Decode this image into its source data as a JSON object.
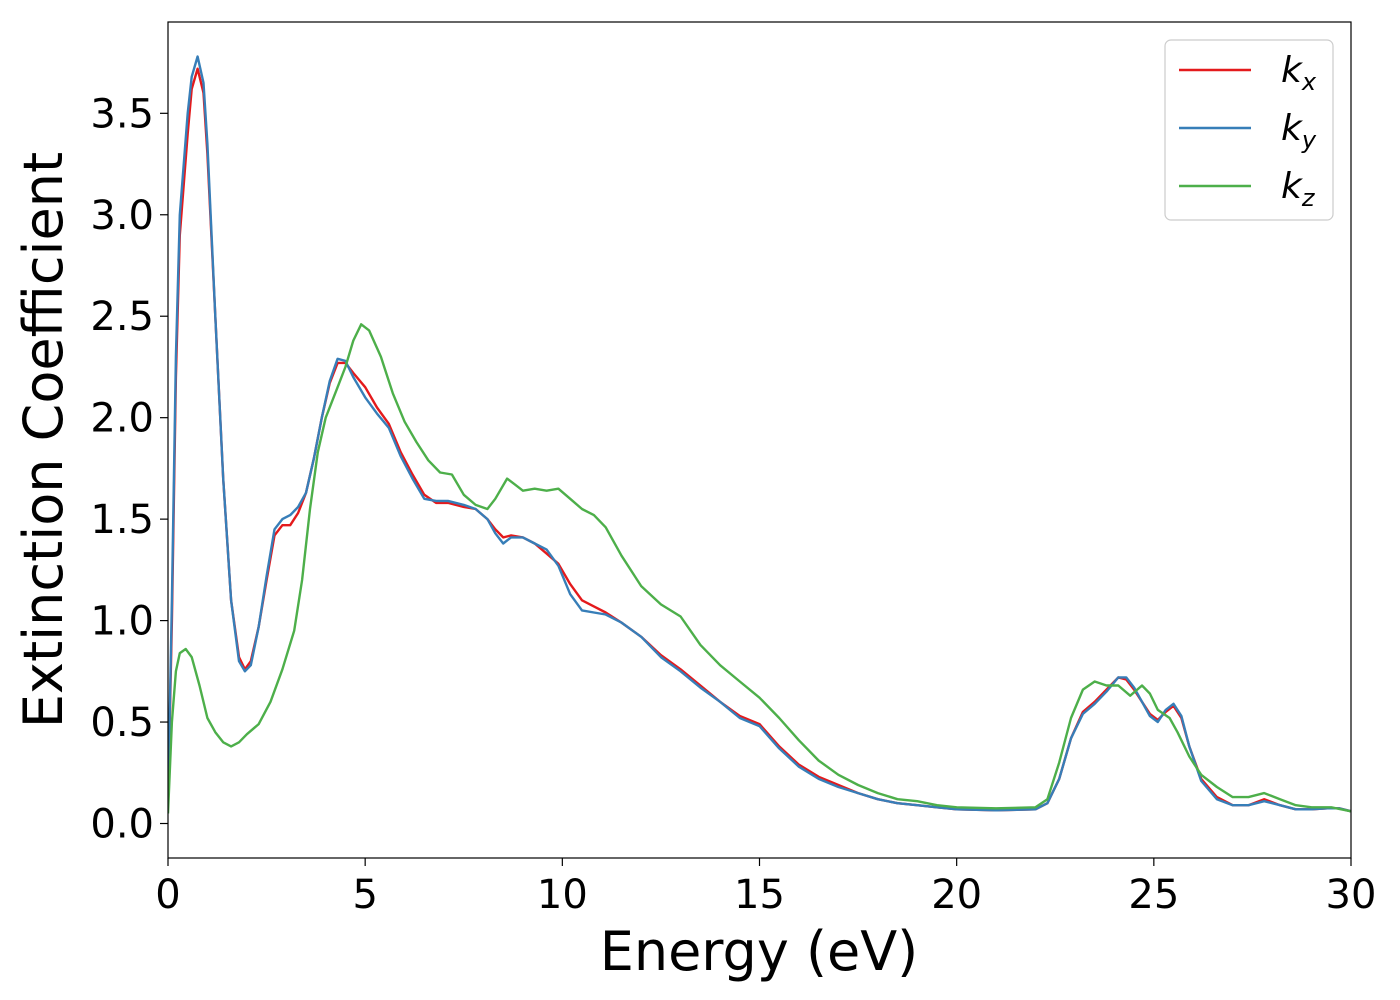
{
  "chart_data": {
    "type": "line",
    "xlabel": "Energy (eV)",
    "ylabel": "Extinction Coefficient",
    "xlim": [
      0,
      30
    ],
    "ylim": [
      -0.17,
      3.95
    ],
    "grid": false,
    "legend_position": "top-right",
    "xticks": [
      "0",
      "5",
      "10",
      "15",
      "20",
      "25",
      "30"
    ],
    "yticks": [
      "0.0",
      "0.5",
      "1.0",
      "1.5",
      "2.0",
      "2.5",
      "3.0",
      "3.5"
    ],
    "series": [
      {
        "name": "k",
        "subscript": "x",
        "color": "#e41a1c",
        "points": [
          [
            0,
            0.1
          ],
          [
            0.1,
            1.0
          ],
          [
            0.2,
            2.2
          ],
          [
            0.3,
            2.9
          ],
          [
            0.5,
            3.4
          ],
          [
            0.6,
            3.62
          ],
          [
            0.75,
            3.72
          ],
          [
            0.9,
            3.6
          ],
          [
            1.0,
            3.3
          ],
          [
            1.2,
            2.5
          ],
          [
            1.4,
            1.7
          ],
          [
            1.6,
            1.1
          ],
          [
            1.8,
            0.82
          ],
          [
            1.95,
            0.76
          ],
          [
            2.1,
            0.8
          ],
          [
            2.3,
            0.97
          ],
          [
            2.5,
            1.2
          ],
          [
            2.7,
            1.42
          ],
          [
            2.9,
            1.47
          ],
          [
            3.1,
            1.47
          ],
          [
            3.3,
            1.53
          ],
          [
            3.5,
            1.63
          ],
          [
            3.7,
            1.8
          ],
          [
            3.9,
            2.0
          ],
          [
            4.1,
            2.17
          ],
          [
            4.3,
            2.27
          ],
          [
            4.5,
            2.27
          ],
          [
            4.7,
            2.22
          ],
          [
            5.0,
            2.15
          ],
          [
            5.3,
            2.05
          ],
          [
            5.6,
            1.97
          ],
          [
            5.9,
            1.83
          ],
          [
            6.2,
            1.72
          ],
          [
            6.5,
            1.62
          ],
          [
            6.8,
            1.58
          ],
          [
            7.1,
            1.58
          ],
          [
            7.5,
            1.56
          ],
          [
            7.8,
            1.55
          ],
          [
            8.1,
            1.5
          ],
          [
            8.3,
            1.45
          ],
          [
            8.5,
            1.41
          ],
          [
            8.7,
            1.42
          ],
          [
            9.0,
            1.41
          ],
          [
            9.3,
            1.38
          ],
          [
            9.6,
            1.33
          ],
          [
            9.9,
            1.28
          ],
          [
            10.2,
            1.18
          ],
          [
            10.5,
            1.1
          ],
          [
            10.8,
            1.07
          ],
          [
            11.1,
            1.04
          ],
          [
            11.5,
            0.99
          ],
          [
            12.0,
            0.92
          ],
          [
            12.5,
            0.83
          ],
          [
            13.0,
            0.76
          ],
          [
            13.5,
            0.68
          ],
          [
            14.0,
            0.6
          ],
          [
            14.5,
            0.53
          ],
          [
            15.0,
            0.49
          ],
          [
            15.5,
            0.38
          ],
          [
            16.0,
            0.29
          ],
          [
            16.5,
            0.23
          ],
          [
            17.0,
            0.19
          ],
          [
            17.5,
            0.15
          ],
          [
            18.0,
            0.12
          ],
          [
            18.5,
            0.1
          ],
          [
            19.0,
            0.09
          ],
          [
            19.5,
            0.08
          ],
          [
            20.0,
            0.07
          ],
          [
            21.0,
            0.065
          ],
          [
            22.0,
            0.07
          ],
          [
            22.3,
            0.1
          ],
          [
            22.6,
            0.22
          ],
          [
            22.9,
            0.42
          ],
          [
            23.2,
            0.55
          ],
          [
            23.5,
            0.6
          ],
          [
            23.8,
            0.66
          ],
          [
            24.1,
            0.72
          ],
          [
            24.3,
            0.71
          ],
          [
            24.5,
            0.66
          ],
          [
            24.7,
            0.6
          ],
          [
            24.9,
            0.54
          ],
          [
            25.1,
            0.51
          ],
          [
            25.3,
            0.55
          ],
          [
            25.5,
            0.58
          ],
          [
            25.7,
            0.52
          ],
          [
            25.9,
            0.38
          ],
          [
            26.2,
            0.22
          ],
          [
            26.6,
            0.13
          ],
          [
            27.0,
            0.09
          ],
          [
            27.4,
            0.09
          ],
          [
            27.8,
            0.12
          ],
          [
            28.2,
            0.09
          ],
          [
            28.6,
            0.07
          ],
          [
            29.0,
            0.07
          ],
          [
            29.4,
            0.075
          ],
          [
            29.7,
            0.075
          ],
          [
            30.0,
            0.06
          ]
        ]
      },
      {
        "name": "k",
        "subscript": "y",
        "color": "#377eb8",
        "points": [
          [
            0,
            0.1
          ],
          [
            0.1,
            1.1
          ],
          [
            0.2,
            2.3
          ],
          [
            0.3,
            3.0
          ],
          [
            0.5,
            3.5
          ],
          [
            0.6,
            3.68
          ],
          [
            0.75,
            3.78
          ],
          [
            0.9,
            3.65
          ],
          [
            1.0,
            3.35
          ],
          [
            1.2,
            2.5
          ],
          [
            1.4,
            1.7
          ],
          [
            1.6,
            1.1
          ],
          [
            1.8,
            0.8
          ],
          [
            1.95,
            0.75
          ],
          [
            2.1,
            0.78
          ],
          [
            2.3,
            0.97
          ],
          [
            2.5,
            1.22
          ],
          [
            2.7,
            1.45
          ],
          [
            2.9,
            1.5
          ],
          [
            3.1,
            1.52
          ],
          [
            3.3,
            1.56
          ],
          [
            3.5,
            1.63
          ],
          [
            3.7,
            1.8
          ],
          [
            3.9,
            2.0
          ],
          [
            4.1,
            2.18
          ],
          [
            4.3,
            2.29
          ],
          [
            4.5,
            2.28
          ],
          [
            4.7,
            2.2
          ],
          [
            5.0,
            2.1
          ],
          [
            5.3,
            2.02
          ],
          [
            5.6,
            1.95
          ],
          [
            5.9,
            1.81
          ],
          [
            6.2,
            1.7
          ],
          [
            6.5,
            1.6
          ],
          [
            6.8,
            1.59
          ],
          [
            7.1,
            1.59
          ],
          [
            7.5,
            1.57
          ],
          [
            7.8,
            1.55
          ],
          [
            8.1,
            1.5
          ],
          [
            8.3,
            1.43
          ],
          [
            8.5,
            1.38
          ],
          [
            8.7,
            1.41
          ],
          [
            9.0,
            1.41
          ],
          [
            9.3,
            1.38
          ],
          [
            9.6,
            1.35
          ],
          [
            9.9,
            1.27
          ],
          [
            10.2,
            1.13
          ],
          [
            10.5,
            1.05
          ],
          [
            10.8,
            1.04
          ],
          [
            11.1,
            1.03
          ],
          [
            11.5,
            0.99
          ],
          [
            12.0,
            0.92
          ],
          [
            12.5,
            0.82
          ],
          [
            13.0,
            0.75
          ],
          [
            13.5,
            0.67
          ],
          [
            14.0,
            0.6
          ],
          [
            14.5,
            0.52
          ],
          [
            15.0,
            0.48
          ],
          [
            15.5,
            0.37
          ],
          [
            16.0,
            0.28
          ],
          [
            16.5,
            0.22
          ],
          [
            17.0,
            0.18
          ],
          [
            17.5,
            0.15
          ],
          [
            18.0,
            0.12
          ],
          [
            18.5,
            0.1
          ],
          [
            19.0,
            0.09
          ],
          [
            19.5,
            0.08
          ],
          [
            20.0,
            0.07
          ],
          [
            21.0,
            0.065
          ],
          [
            22.0,
            0.07
          ],
          [
            22.3,
            0.1
          ],
          [
            22.6,
            0.22
          ],
          [
            22.9,
            0.42
          ],
          [
            23.2,
            0.54
          ],
          [
            23.5,
            0.59
          ],
          [
            23.8,
            0.65
          ],
          [
            24.1,
            0.72
          ],
          [
            24.3,
            0.72
          ],
          [
            24.5,
            0.67
          ],
          [
            24.7,
            0.6
          ],
          [
            24.9,
            0.53
          ],
          [
            25.1,
            0.5
          ],
          [
            25.3,
            0.56
          ],
          [
            25.5,
            0.59
          ],
          [
            25.7,
            0.53
          ],
          [
            25.9,
            0.38
          ],
          [
            26.2,
            0.21
          ],
          [
            26.6,
            0.12
          ],
          [
            27.0,
            0.09
          ],
          [
            27.4,
            0.09
          ],
          [
            27.8,
            0.11
          ],
          [
            28.2,
            0.09
          ],
          [
            28.6,
            0.07
          ],
          [
            29.0,
            0.07
          ],
          [
            29.4,
            0.075
          ],
          [
            29.7,
            0.075
          ],
          [
            30.0,
            0.06
          ]
        ]
      },
      {
        "name": "k",
        "subscript": "z",
        "color": "#4daf4a",
        "points": [
          [
            0,
            0.05
          ],
          [
            0.1,
            0.5
          ],
          [
            0.2,
            0.75
          ],
          [
            0.3,
            0.84
          ],
          [
            0.45,
            0.86
          ],
          [
            0.6,
            0.82
          ],
          [
            0.8,
            0.68
          ],
          [
            1.0,
            0.52
          ],
          [
            1.2,
            0.45
          ],
          [
            1.4,
            0.4
          ],
          [
            1.6,
            0.38
          ],
          [
            1.8,
            0.4
          ],
          [
            2.0,
            0.44
          ],
          [
            2.3,
            0.49
          ],
          [
            2.6,
            0.6
          ],
          [
            2.9,
            0.76
          ],
          [
            3.2,
            0.95
          ],
          [
            3.4,
            1.2
          ],
          [
            3.6,
            1.55
          ],
          [
            3.8,
            1.83
          ],
          [
            4.0,
            2.0
          ],
          [
            4.3,
            2.15
          ],
          [
            4.5,
            2.25
          ],
          [
            4.7,
            2.38
          ],
          [
            4.9,
            2.46
          ],
          [
            5.1,
            2.43
          ],
          [
            5.4,
            2.3
          ],
          [
            5.7,
            2.12
          ],
          [
            6.0,
            1.98
          ],
          [
            6.3,
            1.88
          ],
          [
            6.6,
            1.79
          ],
          [
            6.9,
            1.73
          ],
          [
            7.2,
            1.72
          ],
          [
            7.5,
            1.62
          ],
          [
            7.8,
            1.57
          ],
          [
            8.1,
            1.55
          ],
          [
            8.3,
            1.6
          ],
          [
            8.6,
            1.7
          ],
          [
            8.8,
            1.67
          ],
          [
            9.0,
            1.64
          ],
          [
            9.3,
            1.65
          ],
          [
            9.6,
            1.64
          ],
          [
            9.9,
            1.65
          ],
          [
            10.2,
            1.6
          ],
          [
            10.5,
            1.55
          ],
          [
            10.8,
            1.52
          ],
          [
            11.1,
            1.46
          ],
          [
            11.5,
            1.32
          ],
          [
            12.0,
            1.17
          ],
          [
            12.5,
            1.08
          ],
          [
            13.0,
            1.02
          ],
          [
            13.5,
            0.88
          ],
          [
            14.0,
            0.78
          ],
          [
            14.5,
            0.7
          ],
          [
            15.0,
            0.62
          ],
          [
            15.5,
            0.52
          ],
          [
            16.0,
            0.41
          ],
          [
            16.5,
            0.31
          ],
          [
            17.0,
            0.24
          ],
          [
            17.5,
            0.19
          ],
          [
            18.0,
            0.15
          ],
          [
            18.5,
            0.12
          ],
          [
            19.0,
            0.11
          ],
          [
            19.5,
            0.09
          ],
          [
            20.0,
            0.08
          ],
          [
            21.0,
            0.075
          ],
          [
            22.0,
            0.08
          ],
          [
            22.3,
            0.12
          ],
          [
            22.6,
            0.3
          ],
          [
            22.9,
            0.52
          ],
          [
            23.2,
            0.66
          ],
          [
            23.5,
            0.7
          ],
          [
            23.8,
            0.68
          ],
          [
            24.1,
            0.68
          ],
          [
            24.4,
            0.63
          ],
          [
            24.7,
            0.68
          ],
          [
            24.9,
            0.64
          ],
          [
            25.1,
            0.56
          ],
          [
            25.4,
            0.52
          ],
          [
            25.6,
            0.45
          ],
          [
            25.9,
            0.33
          ],
          [
            26.2,
            0.24
          ],
          [
            26.6,
            0.18
          ],
          [
            27.0,
            0.13
          ],
          [
            27.4,
            0.13
          ],
          [
            27.8,
            0.15
          ],
          [
            28.2,
            0.12
          ],
          [
            28.6,
            0.09
          ],
          [
            29.0,
            0.08
          ],
          [
            29.5,
            0.08
          ],
          [
            30.0,
            0.06
          ]
        ]
      }
    ]
  }
}
